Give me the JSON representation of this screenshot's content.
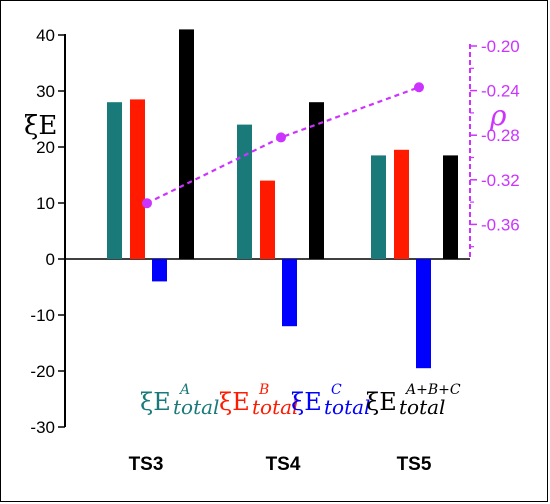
{
  "chart_data": {
    "type": "bar",
    "categories": [
      "TS3",
      "TS4",
      "TS5"
    ],
    "series": [
      {
        "name": "ξE_total^A",
        "symbol": "ξE",
        "sub": "total",
        "sup": "A",
        "color": "#1a7a7a",
        "values": [
          28,
          24,
          18.5
        ]
      },
      {
        "name": "ξE_total^B",
        "symbol": "ξE",
        "sub": "total",
        "sup": "B",
        "color": "#ff1a00",
        "values": [
          28.5,
          14,
          19.5
        ]
      },
      {
        "name": "ξE_total^C",
        "symbol": "ξE",
        "sub": "total",
        "sup": "C",
        "color": "#0000ff",
        "values": [
          -4,
          -12,
          -19.5
        ]
      },
      {
        "name": "ξE_total^A+B+C",
        "symbol": "ξE",
        "sub": "total",
        "sup": "A+B+C",
        "color": "#000000",
        "values": [
          41,
          28,
          18.5
        ]
      }
    ],
    "ylabel": "ξE",
    "ylim": [
      -30,
      42
    ],
    "yticks": [
      "-30",
      "-20",
      "-10",
      "0",
      "10",
      "20",
      "30",
      "40"
    ],
    "secondary": {
      "label": "ρ",
      "color": "#cc33ff",
      "ylim": [
        -0.39,
        -0.195
      ],
      "yticks": [
        "-0.20",
        "-0.24",
        "-0.28",
        "-0.32",
        "-0.36"
      ],
      "values": [
        -0.341,
        -0.282,
        -0.237
      ]
    },
    "legend_position": "bottom-center"
  }
}
